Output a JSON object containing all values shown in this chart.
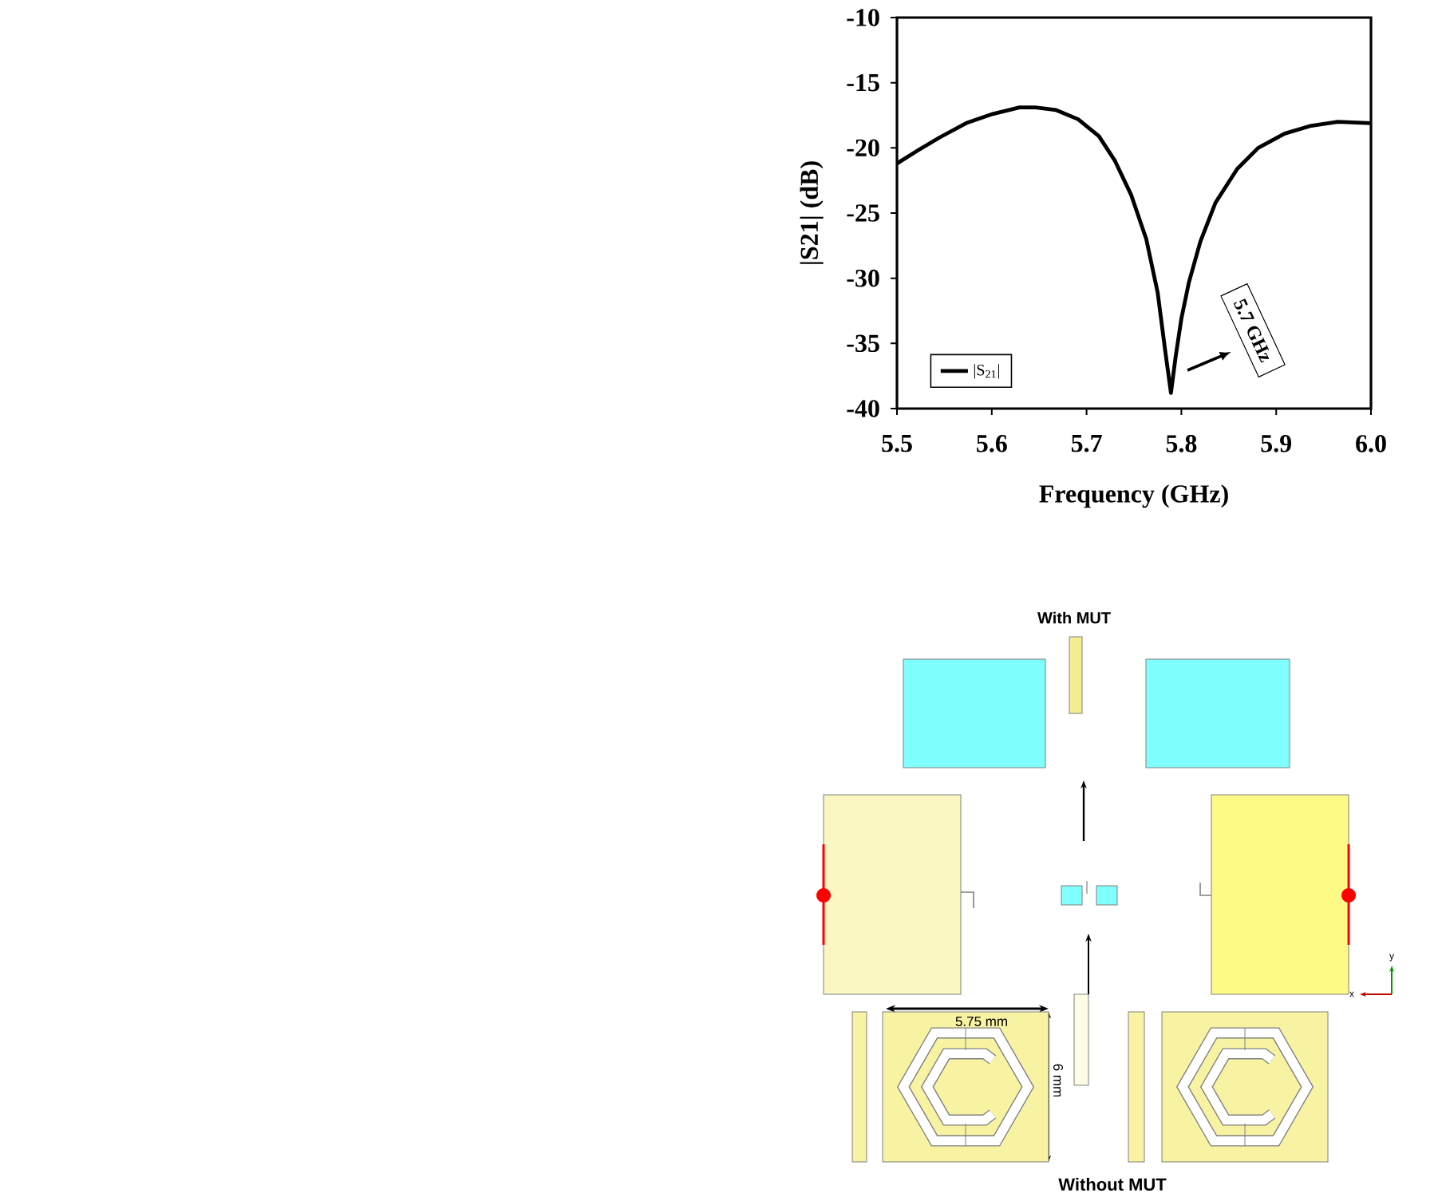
{
  "chart_data": {
    "type": "line",
    "xlabel": "Frequency (GHz)",
    "ylabel": "|S21| (dB)",
    "x": [
      5.5,
      5.522,
      5.545,
      5.573,
      5.601,
      5.629,
      5.646,
      5.668,
      5.691,
      5.713,
      5.73,
      5.747,
      5.763,
      5.775,
      5.783,
      5.789,
      5.794,
      5.8,
      5.808,
      5.82,
      5.836,
      5.859,
      5.881,
      5.909,
      5.937,
      5.965,
      6.0
    ],
    "series": [
      {
        "name": "|S$_{21}$|",
        "color": "#000000",
        "values": [
          -21.2,
          -20.2,
          -19.2,
          -18.1,
          -17.4,
          -16.9,
          -16.9,
          -17.1,
          -17.8,
          -19.1,
          -21.0,
          -23.6,
          -27.0,
          -31.1,
          -35.6,
          -38.8,
          -36.0,
          -33.1,
          -30.3,
          -27.2,
          -24.2,
          -21.6,
          -20.0,
          -18.9,
          -18.3,
          -18.0,
          -18.1
        ]
      }
    ],
    "xlim": [
      5.5,
      6.0
    ],
    "xticks": [
      5.5,
      5.6,
      5.7,
      5.8,
      5.9,
      {
        "value": 6.0,
        "label": "6.0"
      }
    ],
    "ylim": [
      -40,
      -10
    ],
    "yticks": [
      -40,
      -35,
      -30,
      -25,
      -20,
      -15,
      -10
    ],
    "legend": "bottom left",
    "marker": "none",
    "line_style": "solid",
    "annotations": [
      "5.7 GHz",
      "With MUT",
      "Without MUT",
      "5.75 mm",
      "6 mm",
      "y",
      "x"
    ]
  }
}
